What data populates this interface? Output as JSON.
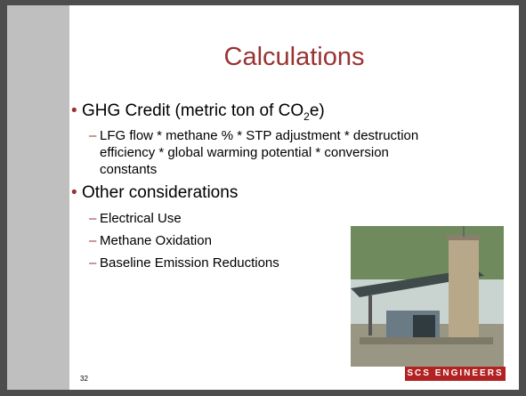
{
  "slide": {
    "title": "Calculations",
    "bullets": [
      {
        "text_parts": [
          "GHG Credit (metric ton of CO",
          "2",
          "e)"
        ],
        "sub": [
          "LFG flow * methane % * STP adjustment * destruction efficiency * global warming potential * conversion constants"
        ]
      },
      {
        "text_parts": [
          "Other considerations"
        ],
        "sub": [
          "Electrical Use",
          "Methane Oxidation",
          "Baseline Emission Reductions"
        ]
      }
    ],
    "slide_number": "32",
    "logo": "SCS ENGINEERS"
  }
}
